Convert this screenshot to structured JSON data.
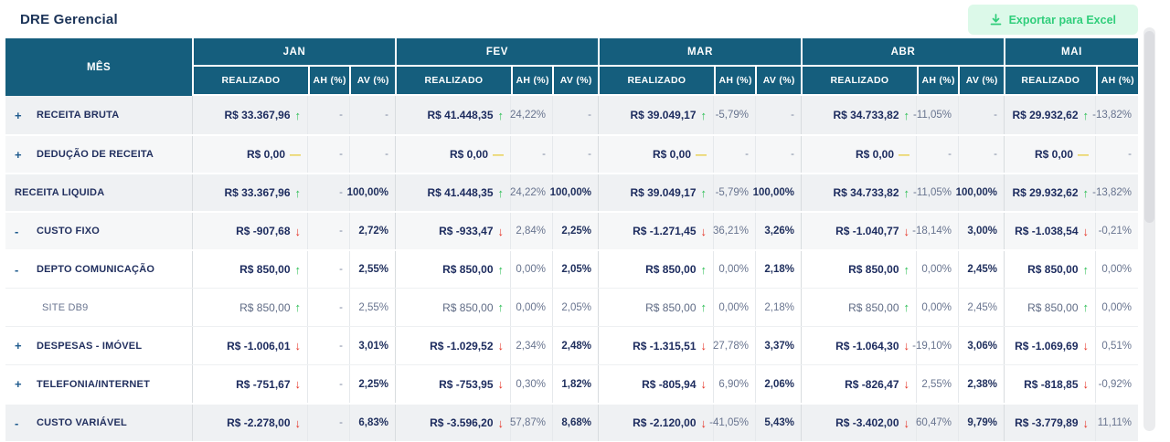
{
  "header": {
    "title": "DRE Gerencial",
    "export_label": "Exportar para Excel"
  },
  "colors": {
    "header_teal": "#155E7D",
    "positive_green": "#2BBE54",
    "negative_red": "#E53326",
    "neutral_yellow": "#E5C832",
    "button_bg": "#DCF9E9",
    "button_text": "#30CE7B",
    "navy_text": "#1C2B5E"
  },
  "table": {
    "mes_label": "MÊS",
    "months": [
      {
        "label": "JAN",
        "cols": [
          "REALIZADO",
          "AH (%)",
          "AV (%)"
        ]
      },
      {
        "label": "FEV",
        "cols": [
          "REALIZADO",
          "AH (%)",
          "AV (%)"
        ]
      },
      {
        "label": "MAR",
        "cols": [
          "REALIZADO",
          "AH (%)",
          "AV (%)"
        ]
      },
      {
        "label": "ABR",
        "cols": [
          "REALIZADO",
          "AH (%)",
          "AV (%)"
        ]
      },
      {
        "label": "MAI",
        "cols": [
          "REALIZADO",
          "AH (%)"
        ]
      }
    ],
    "rows": [
      {
        "toggle": "+",
        "label": "RECEITA BRUTA",
        "child": false,
        "shade": "g1",
        "cells": [
          {
            "v": "R$ 33.367,96",
            "t": "up",
            "ah": "-",
            "av": "-"
          },
          {
            "v": "R$ 41.448,35",
            "t": "up",
            "ah": "24,22%",
            "av": "-"
          },
          {
            "v": "R$ 39.049,17",
            "t": "up",
            "ah": "-5,79%",
            "av": "-"
          },
          {
            "v": "R$ 34.733,82",
            "t": "up",
            "ah": "-11,05%",
            "av": "-"
          },
          {
            "v": "R$ 29.932,62",
            "t": "up",
            "ah": "-13,82%"
          }
        ]
      },
      {
        "toggle": "+",
        "label": "DEDUÇÃO DE RECEITA",
        "child": false,
        "shade": "g2",
        "cells": [
          {
            "v": "R$ 0,00",
            "t": "zero",
            "ah": "-",
            "av": "-"
          },
          {
            "v": "R$ 0,00",
            "t": "zero",
            "ah": "-",
            "av": "-"
          },
          {
            "v": "R$ 0,00",
            "t": "zero",
            "ah": "-",
            "av": "-"
          },
          {
            "v": "R$ 0,00",
            "t": "zero",
            "ah": "-",
            "av": "-"
          },
          {
            "v": "R$ 0,00",
            "t": "zero",
            "ah": "-"
          }
        ]
      },
      {
        "toggle": "",
        "label": "RECEITA LIQUIDA",
        "child": false,
        "shade": "g1",
        "cells": [
          {
            "v": "R$ 33.367,96",
            "t": "up",
            "ah": "-",
            "av": "100,00%"
          },
          {
            "v": "R$ 41.448,35",
            "t": "up",
            "ah": "24,22%",
            "av": "100,00%"
          },
          {
            "v": "R$ 39.049,17",
            "t": "up",
            "ah": "-5,79%",
            "av": "100,00%"
          },
          {
            "v": "R$ 34.733,82",
            "t": "up",
            "ah": "-11,05%",
            "av": "100,00%"
          },
          {
            "v": "R$ 29.932,62",
            "t": "up",
            "ah": "-13,82%"
          }
        ]
      },
      {
        "toggle": "-",
        "label": "CUSTO FIXO",
        "child": false,
        "shade": "g2",
        "cells": [
          {
            "v": "R$ -907,68",
            "t": "down",
            "ah": "-",
            "av": "2,72%"
          },
          {
            "v": "R$ -933,47",
            "t": "down",
            "ah": "2,84%",
            "av": "2,25%"
          },
          {
            "v": "R$ -1.271,45",
            "t": "down",
            "ah": "36,21%",
            "av": "3,26%"
          },
          {
            "v": "R$ -1.040,77",
            "t": "down",
            "ah": "-18,14%",
            "av": "3,00%"
          },
          {
            "v": "R$ -1.038,54",
            "t": "down",
            "ah": "-0,21%"
          }
        ]
      },
      {
        "toggle": "-",
        "label": "DEPTO COMUNICAÇÃO",
        "child": false,
        "shade": "w",
        "cells": [
          {
            "v": "R$ 850,00",
            "t": "up",
            "ah": "-",
            "av": "2,55%"
          },
          {
            "v": "R$ 850,00",
            "t": "up",
            "ah": "0,00%",
            "av": "2,05%"
          },
          {
            "v": "R$ 850,00",
            "t": "up",
            "ah": "0,00%",
            "av": "2,18%"
          },
          {
            "v": "R$ 850,00",
            "t": "up",
            "ah": "0,00%",
            "av": "2,45%"
          },
          {
            "v": "R$ 850,00",
            "t": "up",
            "ah": "0,00%"
          }
        ]
      },
      {
        "toggle": "",
        "label": "SITE DB9",
        "child": true,
        "shade": "w",
        "cells": [
          {
            "v": "R$ 850,00",
            "t": "up",
            "ah": "-",
            "av": "2,55%"
          },
          {
            "v": "R$ 850,00",
            "t": "up",
            "ah": "0,00%",
            "av": "2,05%"
          },
          {
            "v": "R$ 850,00",
            "t": "up",
            "ah": "0,00%",
            "av": "2,18%"
          },
          {
            "v": "R$ 850,00",
            "t": "up",
            "ah": "0,00%",
            "av": "2,45%"
          },
          {
            "v": "R$ 850,00",
            "t": "up",
            "ah": "0,00%"
          }
        ]
      },
      {
        "toggle": "+",
        "label": "DESPESAS - IMÓVEL",
        "child": false,
        "shade": "w",
        "cells": [
          {
            "v": "R$ -1.006,01",
            "t": "down",
            "ah": "-",
            "av": "3,01%"
          },
          {
            "v": "R$ -1.029,52",
            "t": "down",
            "ah": "2,34%",
            "av": "2,48%"
          },
          {
            "v": "R$ -1.315,51",
            "t": "down",
            "ah": "27,78%",
            "av": "3,37%"
          },
          {
            "v": "R$ -1.064,30",
            "t": "down",
            "ah": "-19,10%",
            "av": "3,06%"
          },
          {
            "v": "R$ -1.069,69",
            "t": "down",
            "ah": "0,51%"
          }
        ]
      },
      {
        "toggle": "+",
        "label": "TELEFONIA/INTERNET",
        "child": false,
        "shade": "w",
        "cells": [
          {
            "v": "R$ -751,67",
            "t": "down",
            "ah": "-",
            "av": "2,25%"
          },
          {
            "v": "R$ -753,95",
            "t": "down",
            "ah": "0,30%",
            "av": "1,82%"
          },
          {
            "v": "R$ -805,94",
            "t": "down",
            "ah": "6,90%",
            "av": "2,06%"
          },
          {
            "v": "R$ -826,47",
            "t": "down",
            "ah": "2,55%",
            "av": "2,38%"
          },
          {
            "v": "R$ -818,85",
            "t": "down",
            "ah": "-0,92%"
          }
        ]
      },
      {
        "toggle": "-",
        "label": "CUSTO VARIÁVEL",
        "child": false,
        "shade": "g1",
        "cells": [
          {
            "v": "R$ -2.278,00",
            "t": "down",
            "ah": "-",
            "av": "6,83%"
          },
          {
            "v": "R$ -3.596,20",
            "t": "down",
            "ah": "57,87%",
            "av": "8,68%"
          },
          {
            "v": "R$ -2.120,00",
            "t": "down",
            "ah": "-41,05%",
            "av": "5,43%"
          },
          {
            "v": "R$ -3.402,00",
            "t": "down",
            "ah": "60,47%",
            "av": "9,79%"
          },
          {
            "v": "R$ -3.779,89",
            "t": "down",
            "ah": "11,11%"
          }
        ]
      }
    ]
  }
}
